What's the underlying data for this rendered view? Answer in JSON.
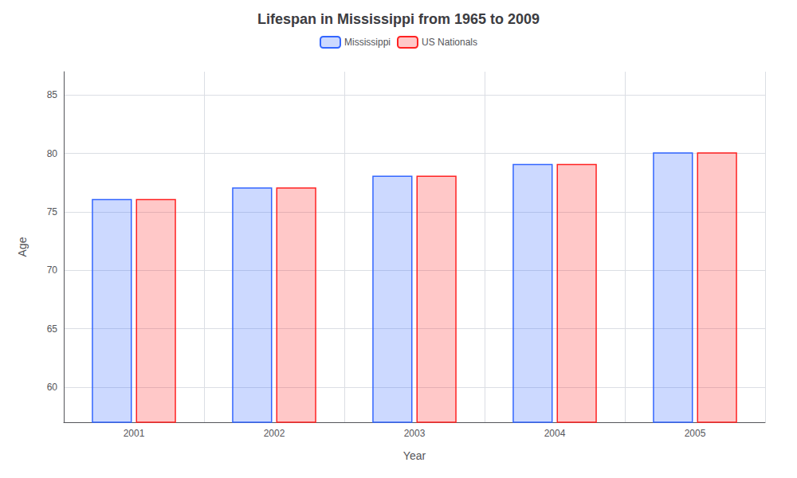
{
  "chart_data": {
    "type": "bar",
    "title": "Lifespan in Mississippi from 1965 to 2009",
    "xlabel": "Year",
    "ylabel": "Age",
    "categories": [
      "2001",
      "2002",
      "2003",
      "2004",
      "2005"
    ],
    "series": [
      {
        "name": "Mississippi",
        "color": "#3366ff",
        "values": [
          76.1,
          77.1,
          78.1,
          79.1,
          80.1
        ]
      },
      {
        "name": "US Nationals",
        "color": "#ff2222",
        "values": [
          76.1,
          77.1,
          78.1,
          79.1,
          80.1
        ]
      }
    ],
    "ylim": [
      57,
      87
    ],
    "yticks": [
      60,
      65,
      70,
      75,
      80,
      85
    ],
    "grid": true,
    "legend": "top"
  }
}
